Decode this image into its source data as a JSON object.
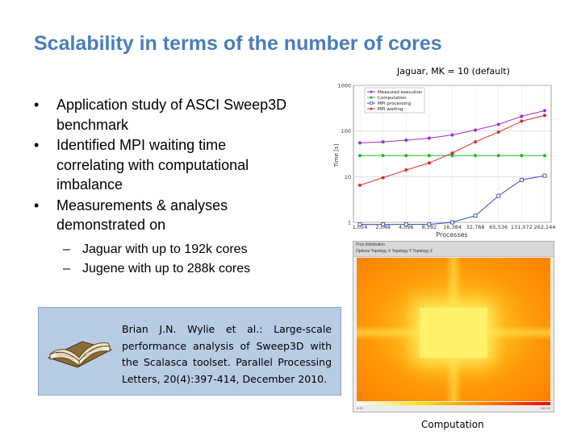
{
  "slide": {
    "title": "Scalability in terms of the number of cores",
    "bullets": [
      "Application study of ASCI Sweep3D benchmark",
      "Identified MPI waiting time correlating with computational imbalance",
      "Measurements & analyses demonstrated on"
    ],
    "sub_bullets": [
      "Jaguar with up to 192k cores",
      "Jugene with up to 288k cores"
    ],
    "bullet_marker": "•",
    "sub_marker": "–",
    "reference": "Brian J.N. Wylie et al.: Large-scale performance analysis of Sweep3D with the Scalasca toolset. Parallel Processing Letters, 20(4):397-414, December 2010.",
    "chart_caption": "Jaguar, MK = 10 (default)",
    "heatmap_caption": "Computation",
    "heatmap_title": "Prez distribution",
    "heatmap_menu": "Options   Topology X   Topology Y   Topology Z",
    "heatmap_scale_min": "0.00",
    "heatmap_scale_max": "100.00",
    "book_icon": "open-book-icon"
  },
  "chart_data": {
    "type": "line",
    "title": "",
    "xlabel": "Processes",
    "ylabel": "Time [s]",
    "yscale": "log",
    "ylim": [
      1,
      1000
    ],
    "yticks": [
      "1",
      "10",
      "100",
      "1000"
    ],
    "categories": [
      "1,024",
      "2,048",
      "4,096",
      "8,192",
      "16,384",
      "32,768",
      "65,536",
      "131,072",
      "262,144"
    ],
    "legend_position": "top-right",
    "series": [
      {
        "name": "Measured execution",
        "color": "#9b2fc9",
        "marker": "circle",
        "values": [
          55,
          58,
          63,
          70,
          82,
          105,
          140,
          210,
          280
        ]
      },
      {
        "name": "Computation",
        "color": "#22bb22",
        "marker": "circle",
        "values": [
          29,
          29,
          29,
          29,
          29,
          29,
          29,
          29,
          29
        ]
      },
      {
        "name": "MPI processing",
        "color": "#3050b0",
        "marker": "square",
        "values": [
          0.9,
          0.9,
          0.9,
          0.9,
          1.0,
          1.4,
          3.8,
          8.5,
          10.5
        ]
      },
      {
        "name": "MPI waiting",
        "color": "#e02828",
        "marker": "circle",
        "values": [
          6.5,
          9.5,
          14,
          20,
          33,
          58,
          95,
          165,
          220
        ]
      }
    ]
  }
}
